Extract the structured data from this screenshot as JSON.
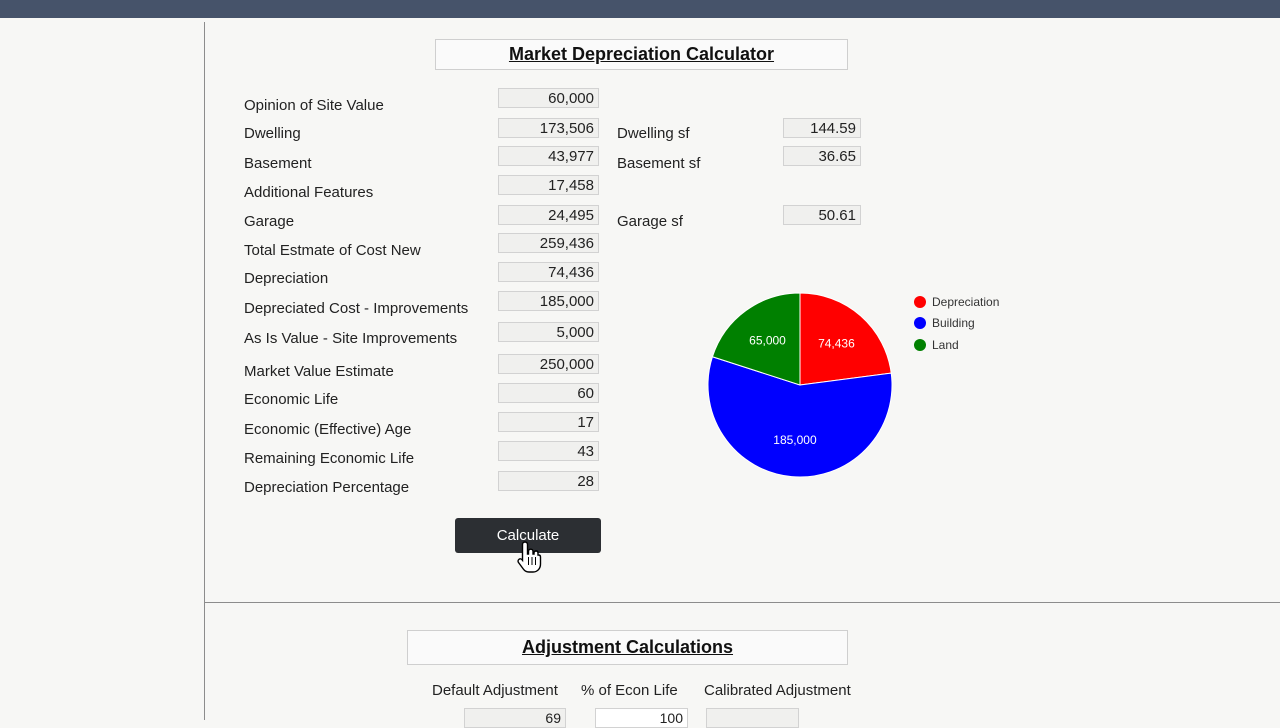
{
  "calculator": {
    "title": "Market Depreciation Calculator",
    "rows": [
      {
        "label": "Opinion of Site Value",
        "value": "60,000"
      },
      {
        "label": "Dwelling",
        "value": "173,506"
      },
      {
        "label": "Basement",
        "value": "43,977"
      },
      {
        "label": "Additional Features",
        "value": "17,458"
      },
      {
        "label": "Garage",
        "value": "24,495"
      },
      {
        "label": "Total Estmate of Cost New",
        "value": "259,436"
      },
      {
        "label": "Depreciation",
        "value": "74,436"
      },
      {
        "label": "Depreciated Cost - Improvements",
        "value": "185,000"
      },
      {
        "label": "As Is Value - Site Improvements",
        "value": "5,000"
      },
      {
        "label": "Market Value Estimate",
        "value": "250,000"
      },
      {
        "label": "Economic Life",
        "value": "60"
      },
      {
        "label": "Economic (Effective) Age",
        "value": "17"
      },
      {
        "label": "Remaining Economic Life",
        "value": "43"
      },
      {
        "label": "Depreciation Percentage",
        "value": "28"
      }
    ],
    "sf": [
      {
        "label": "Dwelling sf",
        "value": "144.59"
      },
      {
        "label": "Basement sf",
        "value": "36.65"
      },
      {
        "label": "Garage sf",
        "value": "50.61"
      }
    ],
    "calculate_label": "Calculate"
  },
  "chart_data": {
    "type": "pie",
    "slices": [
      {
        "name": "Depreciation",
        "value": 74436,
        "label": "74,436",
        "color": "#ff0000"
      },
      {
        "name": "Building",
        "value": 185000,
        "label": "185,000",
        "color": "#0000ff"
      },
      {
        "name": "Land",
        "value": 65000,
        "label": "65,000",
        "color": "#008000"
      }
    ],
    "legend_position": "right"
  },
  "adjustments": {
    "title": "Adjustment Calculations",
    "headers": [
      "Default Adjustment",
      "% of Econ Life",
      "Calibrated Adjustment"
    ],
    "default_value": "69",
    "econ_life_value": "100",
    "calibrated_value": ""
  }
}
